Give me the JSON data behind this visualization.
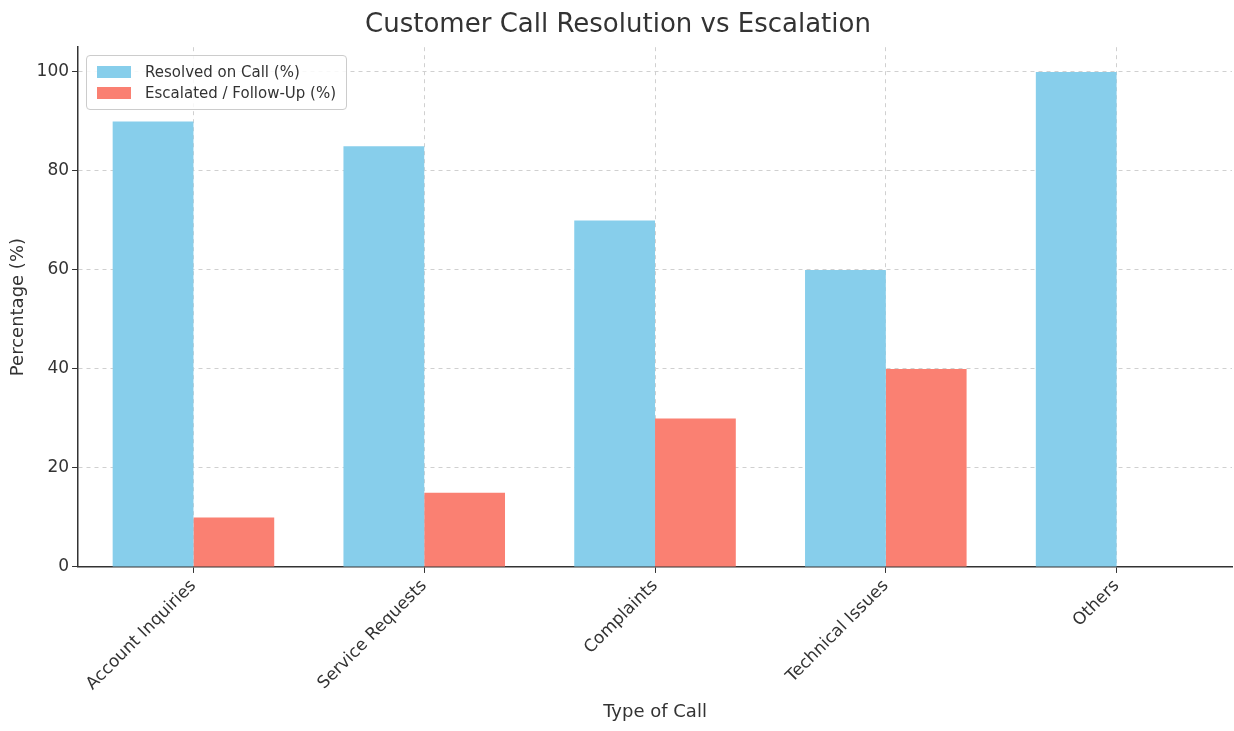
{
  "chart_data": {
    "type": "bar",
    "title": "Customer Call Resolution vs Escalation",
    "xlabel": "Type of Call",
    "ylabel": "Percentage (%)",
    "categories": [
      "Account Inquiries",
      "Service Requests",
      "Complaints",
      "Technical Issues",
      "Others"
    ],
    "series": [
      {
        "name": "Resolved on Call (%)",
        "color": "#87ceeb",
        "values": [
          90,
          85,
          70,
          60,
          100
        ]
      },
      {
        "name": "Escalated / Follow-Up (%)",
        "color": "#fa8072",
        "values": [
          10,
          15,
          30,
          40,
          0
        ]
      }
    ],
    "ylim": [
      0,
      105
    ],
    "yticks": [
      0,
      20,
      40,
      60,
      80,
      100
    ],
    "grid": true,
    "legend": "top left"
  }
}
